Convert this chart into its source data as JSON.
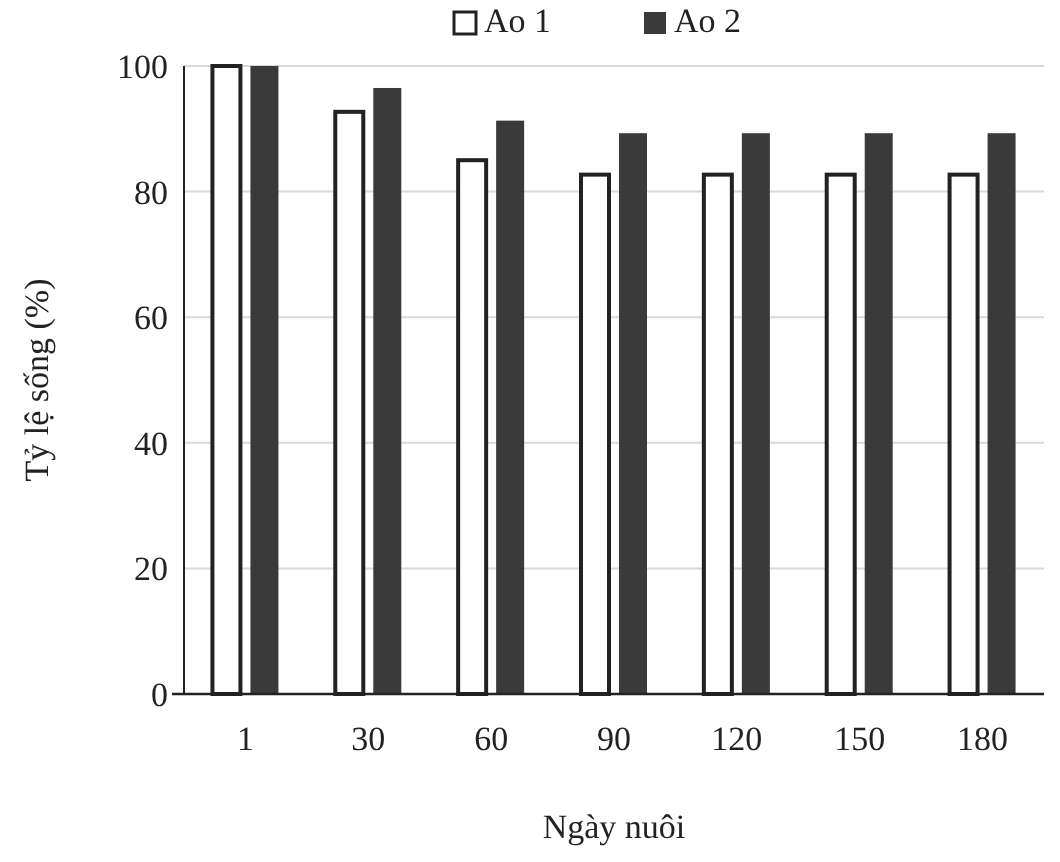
{
  "chart_data": {
    "type": "bar",
    "xlabel": "Ngày nuôi",
    "ylabel": "Tỷ lệ sống (%)",
    "categories": [
      "1",
      "30",
      "60",
      "90",
      "120",
      "150",
      "180"
    ],
    "series": [
      {
        "name": "Ao 1",
        "color": "#ffffff",
        "values": [
          100,
          92.7,
          85,
          82.7,
          82.7,
          82.7,
          82.7
        ]
      },
      {
        "name": "Ao 2",
        "color": "#3a3a3a",
        "values": [
          100,
          96.5,
          91.3,
          89.3,
          89.3,
          89.3,
          89.3
        ]
      }
    ],
    "ylim": [
      0,
      100
    ],
    "yticks": [
      0,
      20,
      40,
      60,
      80,
      100
    ],
    "grid": "y",
    "legend": "top"
  }
}
